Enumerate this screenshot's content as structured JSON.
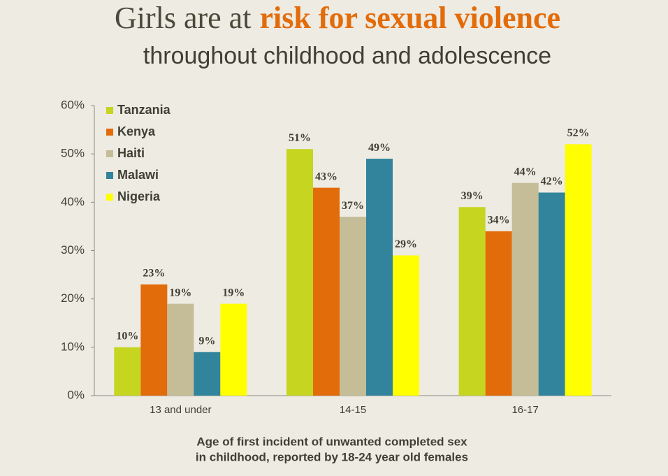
{
  "chart_data": {
    "type": "bar",
    "title": "Girls are at",
    "title_highlight": "risk for sexual violence",
    "subtitle": "throughout childhood and adolescence",
    "xlabel": [
      "Age of first incident of unwanted completed sex",
      "in childhood, reported by 18-24 year old females"
    ],
    "categories": [
      "13 and under",
      "14-15",
      "16-17"
    ],
    "series": [
      {
        "name": "Tanzania",
        "color": "#c5d520",
        "values": [
          10,
          51,
          39
        ],
        "value_labels": [
          "10%",
          "51%",
          "39%"
        ]
      },
      {
        "name": "Kenya",
        "color": "#e36c0a",
        "values": [
          23,
          43,
          34
        ],
        "value_labels": [
          "23%",
          "43%",
          "34%"
        ]
      },
      {
        "name": "Haiti",
        "color": "#c4bd97",
        "values": [
          19,
          37,
          44
        ],
        "value_labels": [
          "19%",
          "37%",
          "44%"
        ]
      },
      {
        "name": "Malawi",
        "color": "#31849b",
        "values": [
          9,
          49,
          42
        ],
        "value_labels": [
          "9%",
          "49%",
          "42%"
        ]
      },
      {
        "name": "Nigeria",
        "color": "#ffff00",
        "values": [
          19,
          29,
          52
        ],
        "value_labels": [
          "19%",
          "29%",
          "52%"
        ]
      }
    ],
    "ylim": [
      0,
      60
    ],
    "yticks": [
      {
        "value": 0,
        "label": "0%"
      },
      {
        "value": 10,
        "label": "10%"
      },
      {
        "value": 20,
        "label": "20%"
      },
      {
        "value": 30,
        "label": "30%"
      },
      {
        "value": 40,
        "label": "40%"
      },
      {
        "value": 50,
        "label": "50%"
      },
      {
        "value": 60,
        "label": "60%"
      }
    ],
    "grid": false,
    "legend": "top-left"
  }
}
